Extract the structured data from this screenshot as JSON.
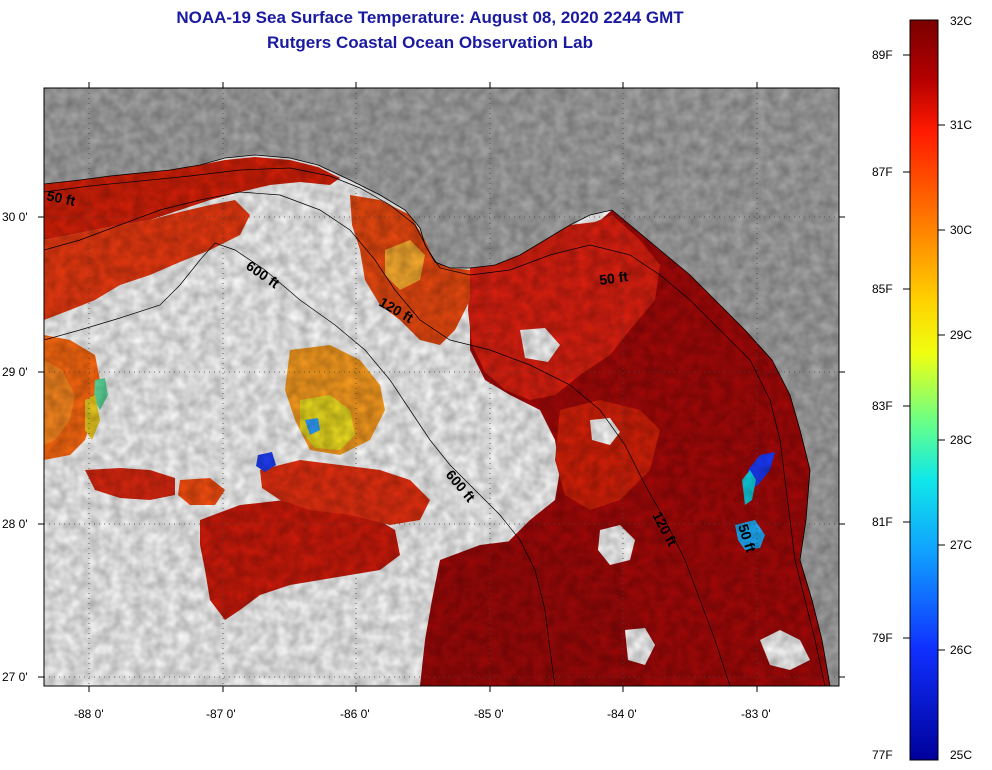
{
  "title": {
    "line1": "NOAA-19 Sea Surface Temperature:  August 08, 2020 2244 GMT",
    "line2": "Rutgers Coastal Ocean Observation Lab"
  },
  "map": {
    "lon_ticks": [
      "-88 0'",
      "-87 0'",
      "-86 0'",
      "-85 0'",
      "-84 0'",
      "-83 0'"
    ],
    "lat_ticks": [
      "30 0'",
      "29 0'",
      "28 0'",
      "27 0'"
    ],
    "contours": [
      "50 ft",
      "600 ft",
      "120 ft",
      "50 ft",
      "600 ft",
      "120 ft",
      "50 ft"
    ]
  },
  "colorbar": {
    "celsius": [
      "32C",
      "31C",
      "30C",
      "29C",
      "28C",
      "27C",
      "26C",
      "25C"
    ],
    "fahrenheit": [
      "89F",
      "87F",
      "85F",
      "83F",
      "81F",
      "79F",
      "77F"
    ]
  },
  "colors": {
    "land": "#aaaaaa",
    "cloud": "#ffffff",
    "title": "#1a1aa0"
  }
}
